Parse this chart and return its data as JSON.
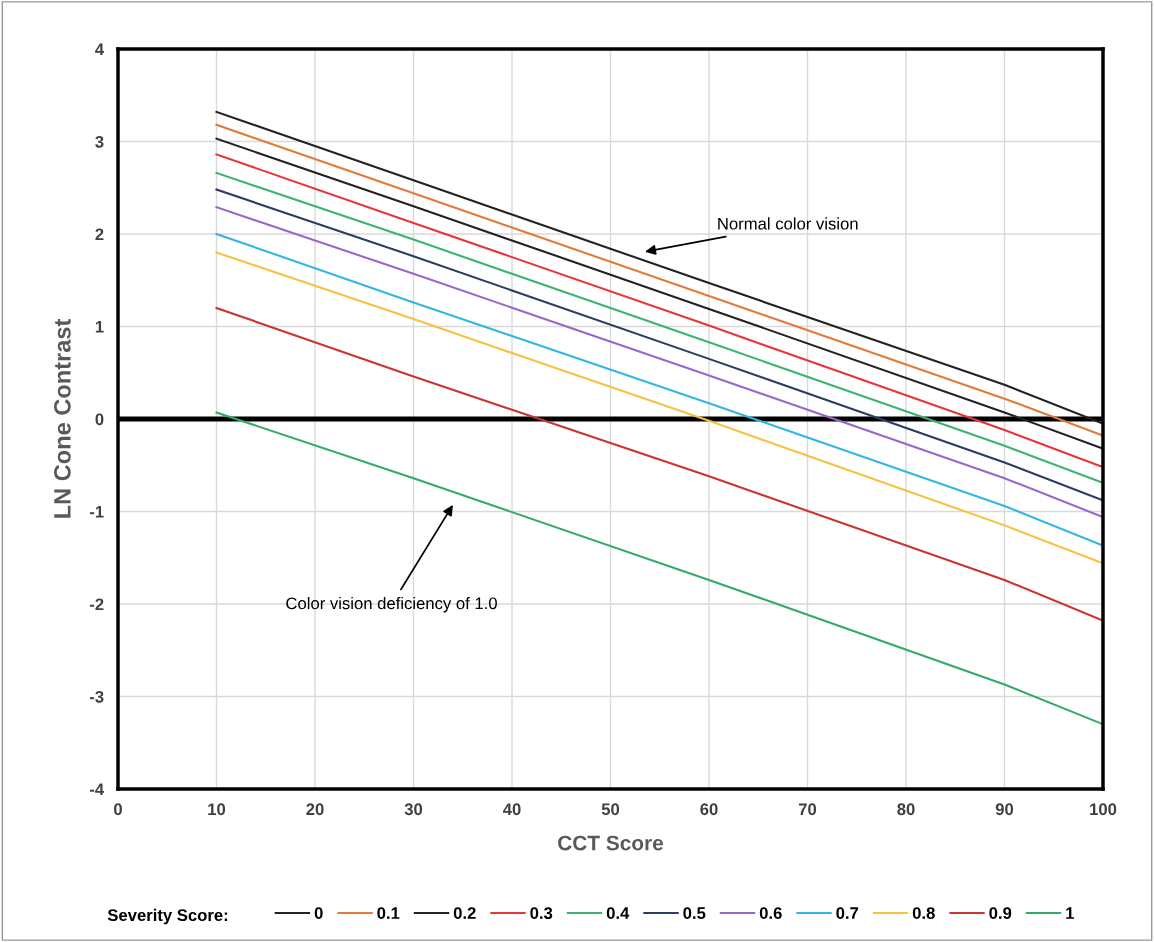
{
  "chart_data": {
    "type": "line",
    "xlabel": "CCT Score",
    "ylabel": "LN Cone Contrast",
    "legend_title": "Severity Score:",
    "x": [
      10,
      30,
      60,
      90,
      100
    ],
    "series": [
      {
        "name": "0",
        "color": "#222222",
        "values": [
          3.32,
          2.58,
          1.47,
          0.37,
          -0.05
        ]
      },
      {
        "name": "0.1",
        "color": "#e07b39",
        "values": [
          3.18,
          2.44,
          1.33,
          0.22,
          -0.18
        ]
      },
      {
        "name": "0.2",
        "color": "#222222",
        "values": [
          3.03,
          2.3,
          1.19,
          0.07,
          -0.32
        ]
      },
      {
        "name": "0.3",
        "color": "#e8343a",
        "values": [
          2.86,
          2.12,
          1.01,
          -0.12,
          -0.52
        ]
      },
      {
        "name": "0.4",
        "color": "#3cb371",
        "values": [
          2.66,
          1.94,
          0.83,
          -0.29,
          -0.69
        ]
      },
      {
        "name": "0.5",
        "color": "#2e3b63",
        "values": [
          2.48,
          1.76,
          0.65,
          -0.47,
          -0.88
        ]
      },
      {
        "name": "0.6",
        "color": "#9966cc",
        "values": [
          2.29,
          1.57,
          0.47,
          -0.64,
          -1.06
        ]
      },
      {
        "name": "0.7",
        "color": "#33b5e5",
        "values": [
          2.0,
          1.26,
          0.17,
          -0.94,
          -1.37
        ]
      },
      {
        "name": "0.8",
        "color": "#f5c242",
        "values": [
          1.8,
          1.08,
          -0.02,
          -1.15,
          -1.56
        ]
      },
      {
        "name": "0.9",
        "color": "#cc3333",
        "values": [
          1.2,
          0.46,
          -0.62,
          -1.74,
          -2.18
        ]
      },
      {
        "name": "1",
        "color": "#33aa66",
        "values": [
          0.07,
          -0.64,
          -1.74,
          -2.87,
          -3.3
        ]
      }
    ],
    "xlim": [
      0,
      100
    ],
    "xticks": [
      0,
      10,
      20,
      30,
      40,
      50,
      60,
      70,
      80,
      90,
      100
    ],
    "ylim": [
      -4,
      4
    ],
    "yticks": [
      -4,
      -3,
      -2,
      -1,
      0,
      1,
      2,
      3,
      4
    ],
    "grid": true,
    "legend": "bottom",
    "marker": "none",
    "line_style": "solid",
    "ref_lines": [
      {
        "axis": "y",
        "value": 0,
        "color": "#000000"
      }
    ],
    "annotations": [
      "Normal color vision",
      "Color vision deficiency of 1.0"
    ]
  }
}
